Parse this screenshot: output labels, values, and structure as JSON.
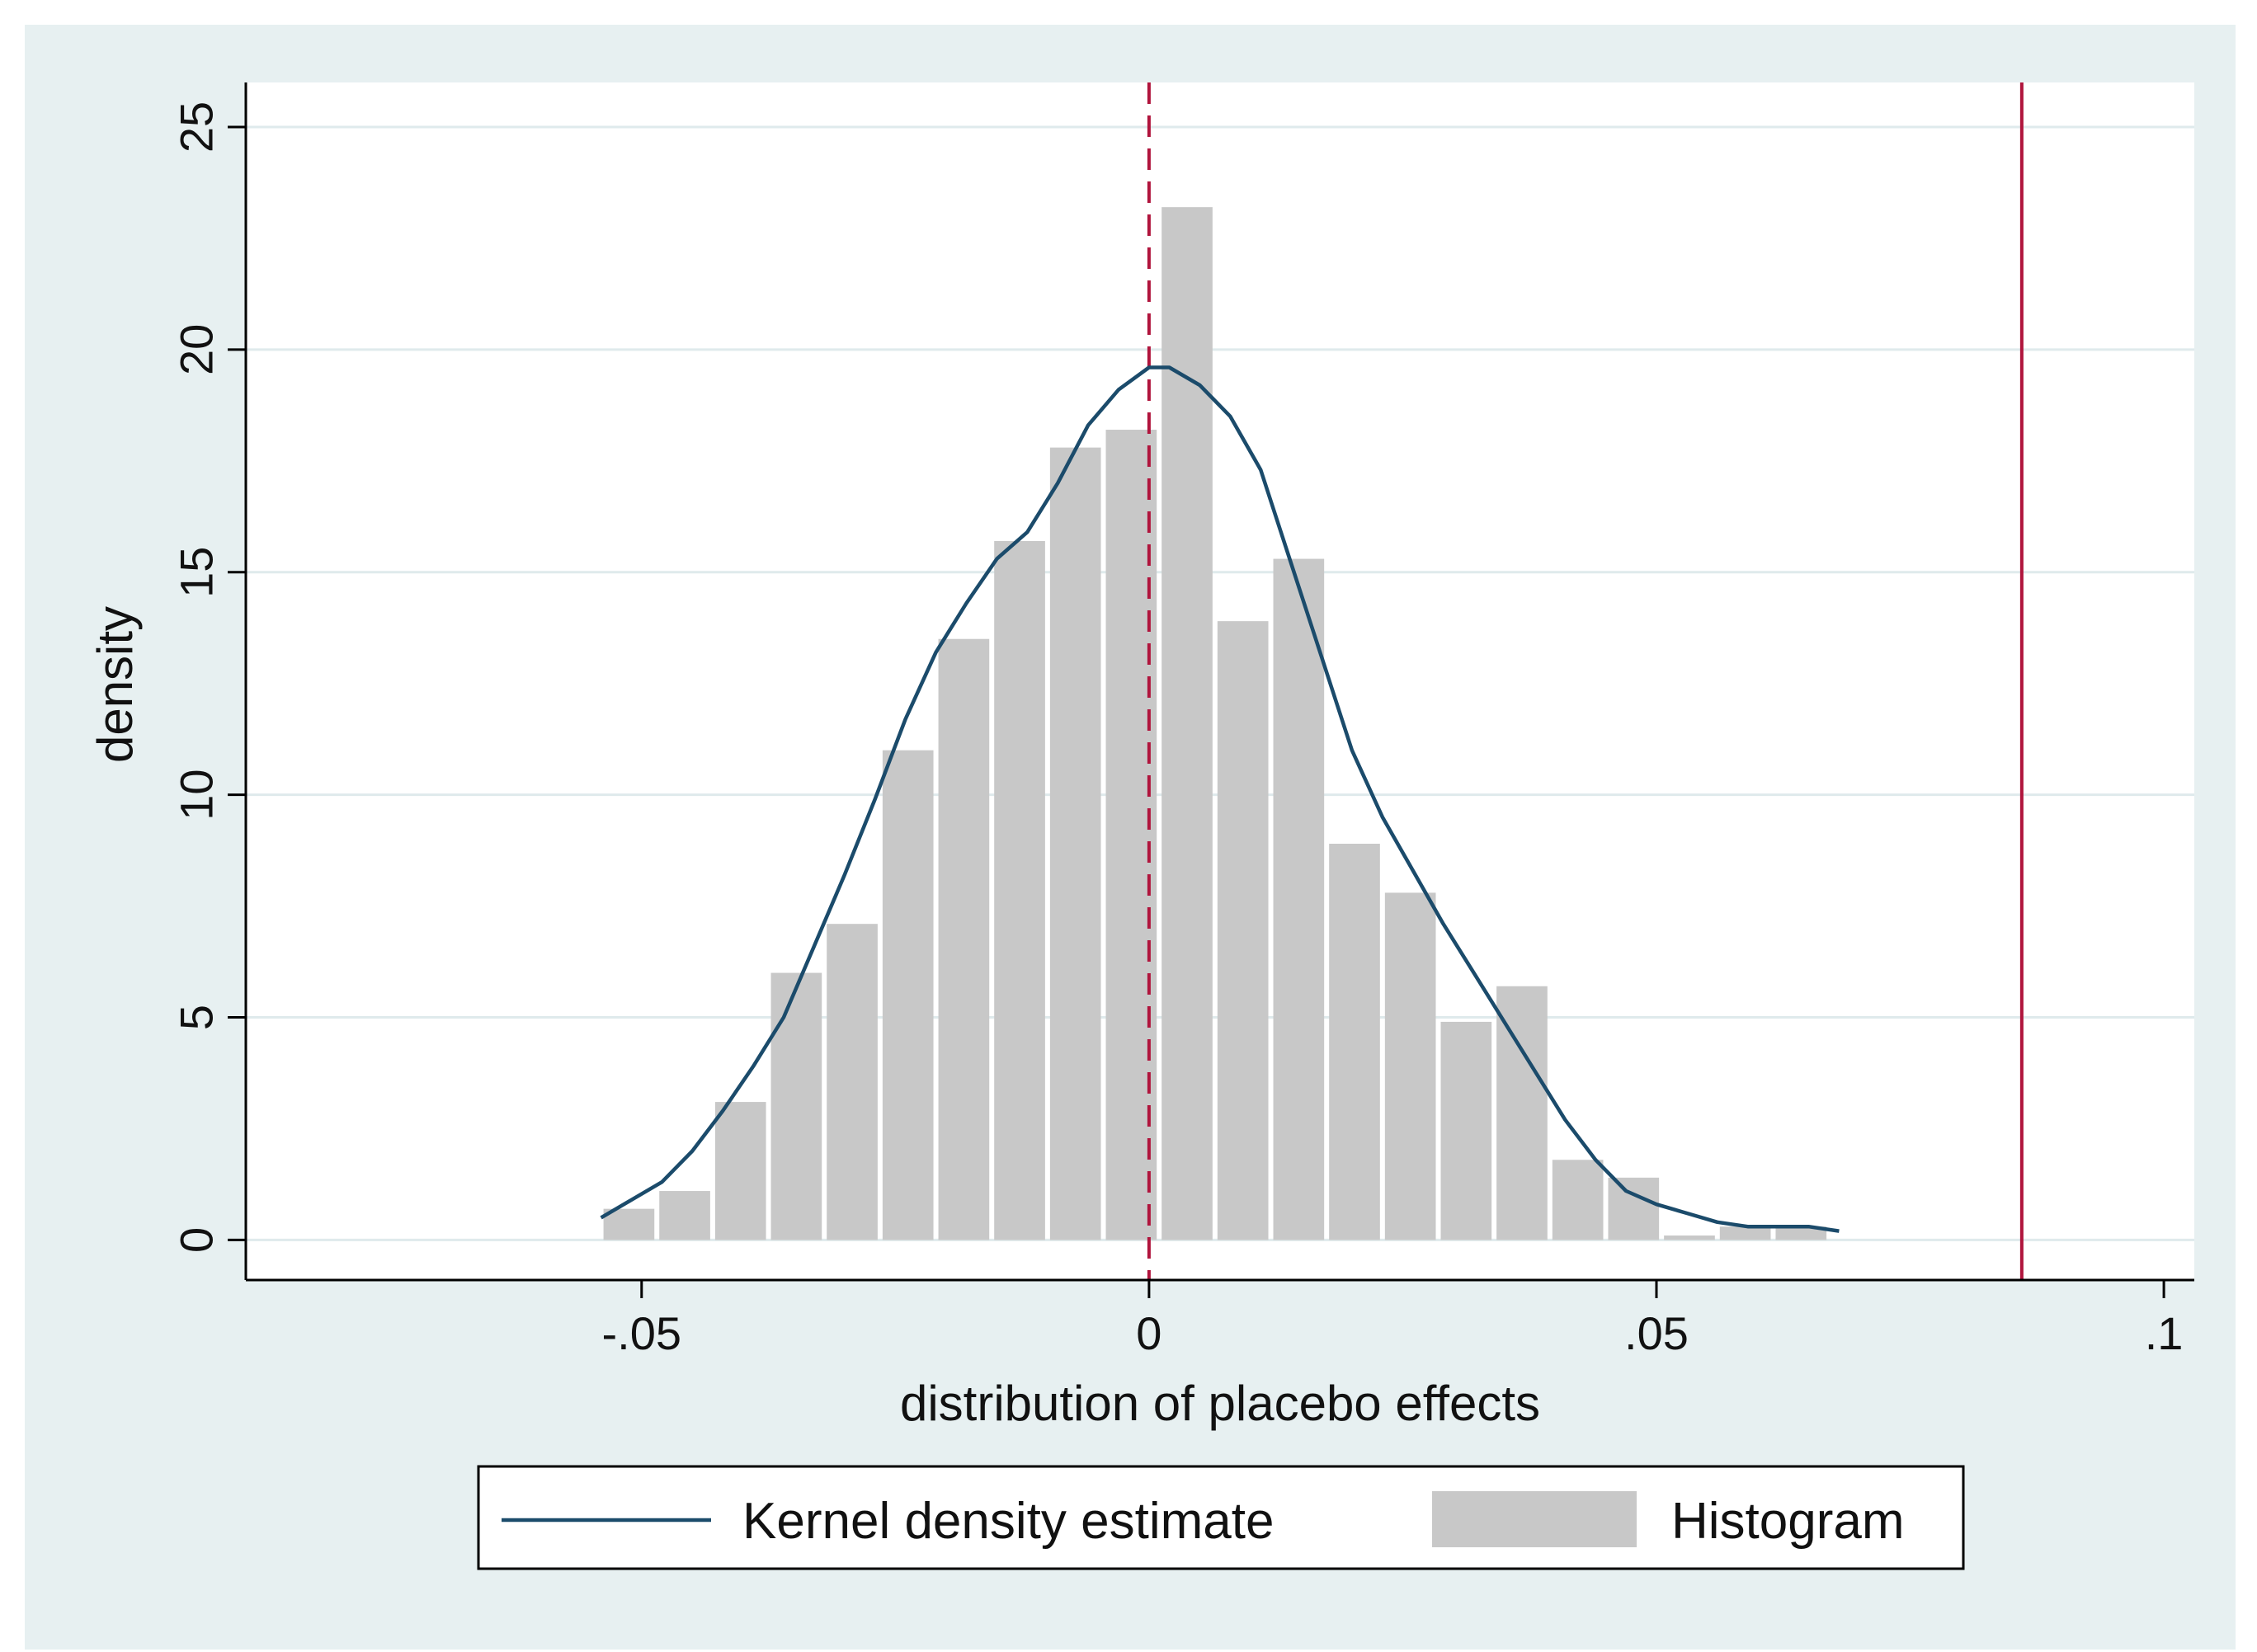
{
  "colors": {
    "outer_background": "#e7f0f1",
    "plot_background": "#ffffff",
    "gridline": "#dfeaec",
    "bar_fill": "#c8c8c8",
    "kde_line": "#1b4b6b",
    "reference_line": "#b0143c",
    "axis": "#000000"
  },
  "chart_data": {
    "type": "bar",
    "title": "",
    "xlabel": "distribution of placebo effects",
    "ylabel": "density",
    "xlim": [
      -0.089,
      0.103
    ],
    "ylim": [
      -0.9,
      26
    ],
    "grid": true,
    "x_ticks": [
      {
        "value": -0.05,
        "label": "-.05"
      },
      {
        "value": 0,
        "label": "0"
      },
      {
        "value": 0.05,
        "label": ".05"
      },
      {
        "value": 0.1,
        "label": ".1"
      }
    ],
    "y_ticks": [
      {
        "value": 0,
        "label": "0"
      },
      {
        "value": 5,
        "label": "5"
      },
      {
        "value": 10,
        "label": "10"
      },
      {
        "value": 15,
        "label": "15"
      },
      {
        "value": 20,
        "label": "20"
      },
      {
        "value": 25,
        "label": "25"
      }
    ],
    "histogram": {
      "name": "Histogram",
      "bin_width": 0.0055,
      "bins": [
        {
          "start": -0.054,
          "value": 0.7
        },
        {
          "start": -0.0485,
          "value": 1.1
        },
        {
          "start": -0.043,
          "value": 3.1
        },
        {
          "start": -0.0375,
          "value": 6.0
        },
        {
          "start": -0.032,
          "value": 7.1
        },
        {
          "start": -0.0265,
          "value": 11.0
        },
        {
          "start": -0.021,
          "value": 13.5
        },
        {
          "start": -0.0155,
          "value": 15.7
        },
        {
          "start": -0.01,
          "value": 17.8
        },
        {
          "start": -0.0045,
          "value": 18.2
        },
        {
          "start": 0.001,
          "value": 23.2
        },
        {
          "start": 0.0065,
          "value": 13.9
        },
        {
          "start": 0.012,
          "value": 15.3
        },
        {
          "start": 0.0175,
          "value": 8.9
        },
        {
          "start": 0.023,
          "value": 7.8
        },
        {
          "start": 0.0285,
          "value": 4.9
        },
        {
          "start": 0.034,
          "value": 5.7
        },
        {
          "start": 0.0395,
          "value": 1.8
        },
        {
          "start": 0.045,
          "value": 1.4
        },
        {
          "start": 0.0505,
          "value": 0.1
        },
        {
          "start": 0.056,
          "value": 0.3
        },
        {
          "start": 0.0615,
          "value": 0.3
        }
      ]
    },
    "kde": {
      "name": "Kernel density estimate",
      "x": [
        -0.054,
        -0.051,
        -0.048,
        -0.045,
        -0.042,
        -0.039,
        -0.036,
        -0.033,
        -0.03,
        -0.027,
        -0.024,
        -0.021,
        -0.018,
        -0.015,
        -0.012,
        -0.009,
        -0.006,
        -0.003,
        0.0,
        0.002,
        0.005,
        0.008,
        0.011,
        0.014,
        0.017,
        0.02,
        0.023,
        0.026,
        0.029,
        0.032,
        0.035,
        0.038,
        0.041,
        0.044,
        0.047,
        0.05,
        0.053,
        0.056,
        0.059,
        0.062,
        0.065,
        0.068
      ],
      "y": [
        0.5,
        0.9,
        1.3,
        2.0,
        2.9,
        3.9,
        5.0,
        6.6,
        8.2,
        9.9,
        11.7,
        13.2,
        14.3,
        15.3,
        15.9,
        17.0,
        18.3,
        19.1,
        19.6,
        19.6,
        19.2,
        18.5,
        17.3,
        15.2,
        13.1,
        11.0,
        9.5,
        8.3,
        7.1,
        6.0,
        4.9,
        3.8,
        2.7,
        1.8,
        1.1,
        0.8,
        0.6,
        0.4,
        0.3,
        0.3,
        0.3,
        0.2
      ]
    },
    "reference_lines": [
      {
        "x": 0,
        "style": "dashed"
      },
      {
        "x": 0.086,
        "style": "solid"
      }
    ],
    "legend": {
      "placement": "bottom-center",
      "entries": [
        {
          "label": "Kernel density estimate",
          "type": "line"
        },
        {
          "label": "Histogram",
          "type": "bar"
        }
      ]
    }
  }
}
